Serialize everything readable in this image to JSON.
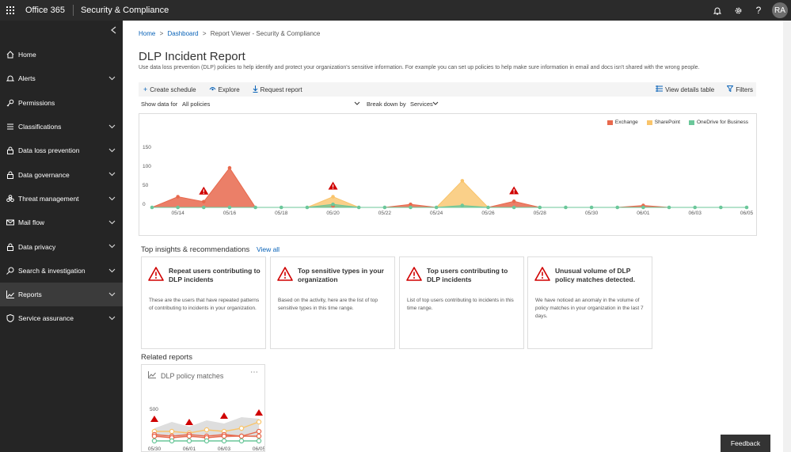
{
  "topbar": {
    "app_name": "Office 365",
    "app_title": "Security & Compliance",
    "avatar_initials": "RA"
  },
  "sidebar": {
    "items": [
      {
        "label": "Home",
        "icon": "home-icon",
        "chevron": false
      },
      {
        "label": "Alerts",
        "icon": "alert-icon",
        "chevron": true
      },
      {
        "label": "Permissions",
        "icon": "key-icon",
        "chevron": false
      },
      {
        "label": "Classifications",
        "icon": "list-icon",
        "chevron": true
      },
      {
        "label": "Data loss prevention",
        "icon": "lock-icon",
        "chevron": true
      },
      {
        "label": "Data governance",
        "icon": "lock-icon",
        "chevron": true
      },
      {
        "label": "Threat management",
        "icon": "biohazard-icon",
        "chevron": true
      },
      {
        "label": "Mail flow",
        "icon": "mail-icon",
        "chevron": true
      },
      {
        "label": "Data privacy",
        "icon": "lock-icon",
        "chevron": true
      },
      {
        "label": "Search & investigation",
        "icon": "search-icon",
        "chevron": true
      },
      {
        "label": "Reports",
        "icon": "chart-icon",
        "chevron": true,
        "active": true
      },
      {
        "label": "Service assurance",
        "icon": "shield-icon",
        "chevron": true
      }
    ]
  },
  "breadcrumb": {
    "home": "Home",
    "dashboard": "Dashboard",
    "current": "Report Viewer - Security & Compliance",
    "sep": ">"
  },
  "page": {
    "title": "DLP Incident Report",
    "description": "Use data loss prevention (DLP) policies to help identify and protect your organization's sensitive information. For example you can set up policies to help make sure information in email and docs isn't shared with the wrong people."
  },
  "toolbar": {
    "create_schedule": "Create schedule",
    "explore": "Explore",
    "request_report": "Request report",
    "view_details": "View details table",
    "filters": "Filters"
  },
  "filters": {
    "show_data_label": "Show data for",
    "show_data_value": "All policies",
    "breakdown_label": "Break down by",
    "breakdown_value": "Services"
  },
  "colors": {
    "exchange": "#E8694D",
    "sharepoint": "#F9C46B",
    "onedrive": "#6BC79A",
    "alert": "#D00000",
    "link": "#0a63b8"
  },
  "chart_data": {
    "type": "area",
    "x": [
      "05/13",
      "05/14",
      "05/15",
      "05/16",
      "05/17",
      "05/18",
      "05/19",
      "05/20",
      "05/21",
      "05/22",
      "05/23",
      "05/24",
      "05/25",
      "05/26",
      "05/27",
      "05/28",
      "05/29",
      "05/30",
      "05/31",
      "06/01",
      "06/02",
      "06/03",
      "06/04",
      "06/05"
    ],
    "xtick_labels": [
      "05/14",
      "05/16",
      "05/18",
      "05/20",
      "05/22",
      "05/24",
      "05/26",
      "05/28",
      "05/30",
      "06/01",
      "06/03",
      "06/05"
    ],
    "ylim": [
      0,
      150
    ],
    "yticks": [
      0,
      50,
      100,
      150
    ],
    "series": [
      {
        "name": "Exchange",
        "values": [
          0,
          28,
          15,
          104,
          0,
          0,
          0,
          4,
          0,
          0,
          8,
          0,
          0,
          0,
          16,
          0,
          0,
          0,
          0,
          5,
          0,
          0,
          0,
          0
        ]
      },
      {
        "name": "SharePoint",
        "values": [
          0,
          0,
          0,
          0,
          0,
          0,
          0,
          28,
          0,
          0,
          0,
          0,
          70,
          0,
          0,
          0,
          0,
          0,
          0,
          0,
          0,
          0,
          0,
          0
        ]
      },
      {
        "name": "OneDrive for Business",
        "values": [
          0,
          0,
          0,
          0,
          0,
          0,
          0,
          8,
          0,
          0,
          0,
          0,
          5,
          0,
          0,
          0,
          0,
          0,
          0,
          0,
          0,
          0,
          0,
          0
        ]
      }
    ],
    "alert_dates": [
      "05/15",
      "05/20",
      "05/27"
    ],
    "legend": "top-right",
    "grid": false
  },
  "insights": {
    "title": "Top insights & recommendations",
    "view_all": "View all",
    "cards": [
      {
        "title": "Repeat users contributing to DLP incidents",
        "body": "These are the users that have repeated patterns of contributing to incidents in your organization."
      },
      {
        "title": "Top sensitive types in your organization",
        "body": "Based on the activity, here are the list of top sensitive types in this time range."
      },
      {
        "title": "Top users contributing to DLP incidents",
        "body": "List of top users contributing to incidents in this time range."
      },
      {
        "title": "Unusual volume of DLP policy matches detected.",
        "body": "We have noticed an anomaly in the volume of policy matches in your organization in the last 7 days."
      }
    ]
  },
  "related": {
    "title": "Related reports",
    "card_title": "DLP policy matches",
    "more": "⋯",
    "mini_chart": {
      "type": "line",
      "ytick": "500",
      "xtick_labels": [
        "05/30",
        "06/01",
        "06/03",
        "06/05"
      ]
    }
  },
  "feedback": "Feedback"
}
